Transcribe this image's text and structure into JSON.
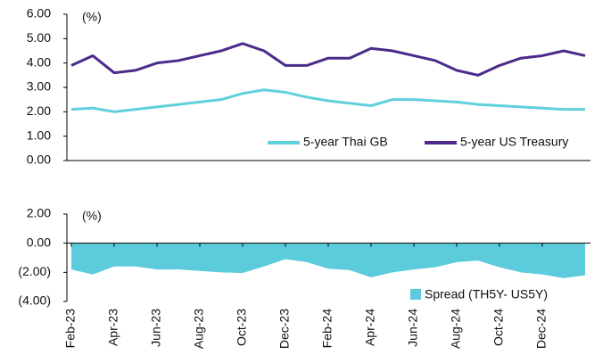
{
  "chart_data": [
    {
      "type": "line",
      "annotation": "(%)",
      "series": [
        {
          "name": "5-year Thai GB",
          "color": "#5fd0dc",
          "values": [
            2.1,
            2.15,
            2.0,
            2.1,
            2.2,
            2.3,
            2.4,
            2.5,
            2.75,
            2.9,
            2.8,
            2.6,
            2.45,
            2.35,
            2.25,
            2.5,
            2.5,
            2.45,
            2.4,
            2.3,
            2.25,
            2.2,
            2.15,
            2.1,
            2.1
          ]
        },
        {
          "name": "5-year US Treasury",
          "color": "#4b2a8a",
          "values": [
            3.9,
            4.3,
            3.6,
            3.7,
            4.0,
            4.1,
            4.3,
            4.5,
            4.8,
            4.5,
            3.9,
            3.9,
            4.2,
            4.2,
            4.6,
            4.5,
            4.3,
            4.1,
            3.7,
            3.5,
            3.9,
            4.2,
            4.3,
            4.5,
            4.3
          ]
        }
      ],
      "ylim": [
        0,
        6
      ],
      "yticks": [
        {
          "value": 0,
          "label": "0.00"
        },
        {
          "value": 1,
          "label": "1.00"
        },
        {
          "value": 2,
          "label": "2.00"
        },
        {
          "value": 3,
          "label": "3.00"
        },
        {
          "value": 4,
          "label": "4.00"
        },
        {
          "value": 5,
          "label": "5.00"
        },
        {
          "value": 6,
          "label": "6.00"
        }
      ],
      "grid": false,
      "legend": "bottom-right"
    },
    {
      "type": "area",
      "annotation": "(%)",
      "name": "Spread (TH5Y- US5Y)",
      "color": "#5ccbdb",
      "categories": [
        "Feb-23",
        null,
        "Apr-23",
        null,
        "Jun-23",
        null,
        "Aug-23",
        null,
        "Oct-23",
        null,
        "Dec-23",
        null,
        "Feb-24",
        null,
        "Apr-24",
        null,
        "Jun-24",
        null,
        "Aug-24",
        null,
        "Oct-24",
        null,
        "Dec-24",
        null,
        null
      ],
      "values": [
        -1.8,
        -2.15,
        -1.6,
        -1.6,
        -1.8,
        -1.8,
        -1.9,
        -2.0,
        -2.05,
        -1.6,
        -1.1,
        -1.3,
        -1.75,
        -1.85,
        -2.35,
        -2.0,
        -1.8,
        -1.65,
        -1.3,
        -1.2,
        -1.65,
        -2.0,
        -2.15,
        -2.4,
        -2.2
      ],
      "ylim": [
        -4,
        2
      ],
      "yticks": [
        {
          "value": -4,
          "label": "(4.00)"
        },
        {
          "value": -2,
          "label": "(2.00)"
        },
        {
          "value": 0,
          "label": "0.00"
        },
        {
          "value": 2,
          "label": "2.00"
        }
      ],
      "grid": false,
      "legend": "bottom-right"
    }
  ]
}
